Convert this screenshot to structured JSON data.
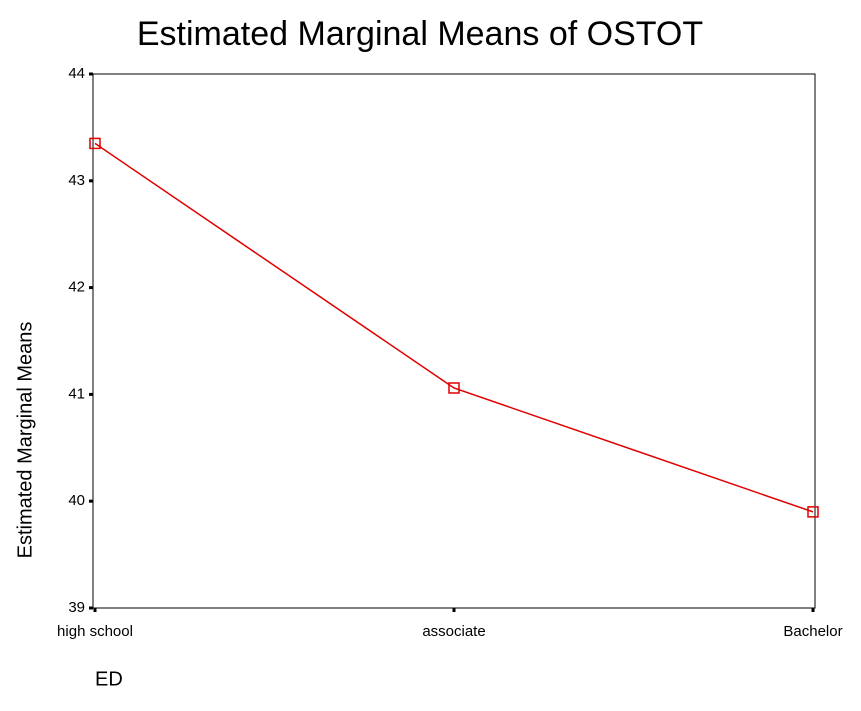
{
  "chart_data": {
    "type": "line",
    "title": "Estimated Marginal Means of OSTOT",
    "ylabel": "Estimated Marginal Means",
    "xlabel": "ED",
    "categories": [
      "high school",
      "associate",
      "Bachelor"
    ],
    "series": [
      {
        "name": "OSTOT",
        "color": "#e00000",
        "values": [
          43.35,
          41.06,
          39.9
        ]
      }
    ],
    "ylim": [
      39,
      44
    ],
    "yticks": [
      39,
      40,
      41,
      42,
      43,
      44
    ],
    "grid": false
  }
}
